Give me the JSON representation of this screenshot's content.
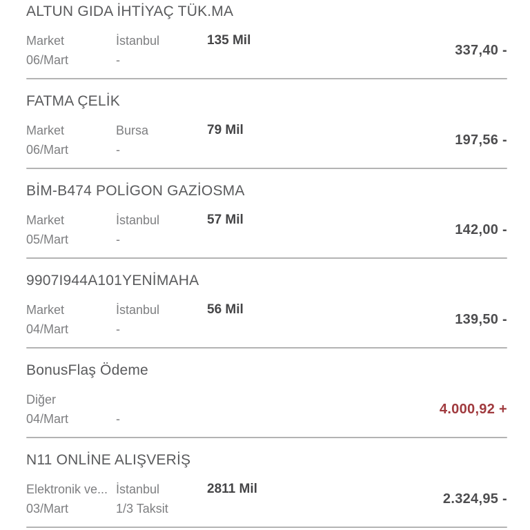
{
  "colors": {
    "background": "#ffffff",
    "title_text": "#595a5c",
    "secondary_text": "#7d7e80",
    "miles_text": "#454547",
    "amount_text": "#4d4d4f",
    "amount_positive_text": "#a03a3e",
    "divider": "#b3b3b3"
  },
  "transactions": [
    {
      "merchant": "ALTUN GIDA İHTİYAÇ TÜK.MA",
      "category": "Market",
      "city": "İstanbul",
      "miles": "135 Mil",
      "date": "06/Mart",
      "installment": "-",
      "amount": "337,40 -",
      "amount_type": "negative"
    },
    {
      "merchant": "FATMA ÇELİK",
      "category": "Market",
      "city": "Bursa",
      "miles": "79 Mil",
      "date": "06/Mart",
      "installment": "-",
      "amount": "197,56 -",
      "amount_type": "negative"
    },
    {
      "merchant": "BİM-B474 POLİGON GAZİOSMA",
      "category": "Market",
      "city": "İstanbul",
      "miles": "57 Mil",
      "date": "05/Mart",
      "installment": "-",
      "amount": "142,00 -",
      "amount_type": "negative"
    },
    {
      "merchant": "9907I944A101YENİMAHA",
      "category": "Market",
      "city": "İstanbul",
      "miles": "56 Mil",
      "date": "04/Mart",
      "installment": "-",
      "amount": "139,50 -",
      "amount_type": "negative"
    },
    {
      "merchant": "BonusFlaş Ödeme",
      "category": "Diğer",
      "city": "",
      "miles": "",
      "date": "04/Mart",
      "installment": "-",
      "amount": "4.000,92 +",
      "amount_type": "positive"
    },
    {
      "merchant": "N11 ONLİNE ALIŞVERİŞ",
      "category": "Elektronik ve...",
      "city": "İstanbul",
      "miles": "2811 Mil",
      "date": "03/Mart",
      "installment": "1/3 Taksit",
      "amount": "2.324,95 -",
      "amount_type": "negative"
    }
  ]
}
